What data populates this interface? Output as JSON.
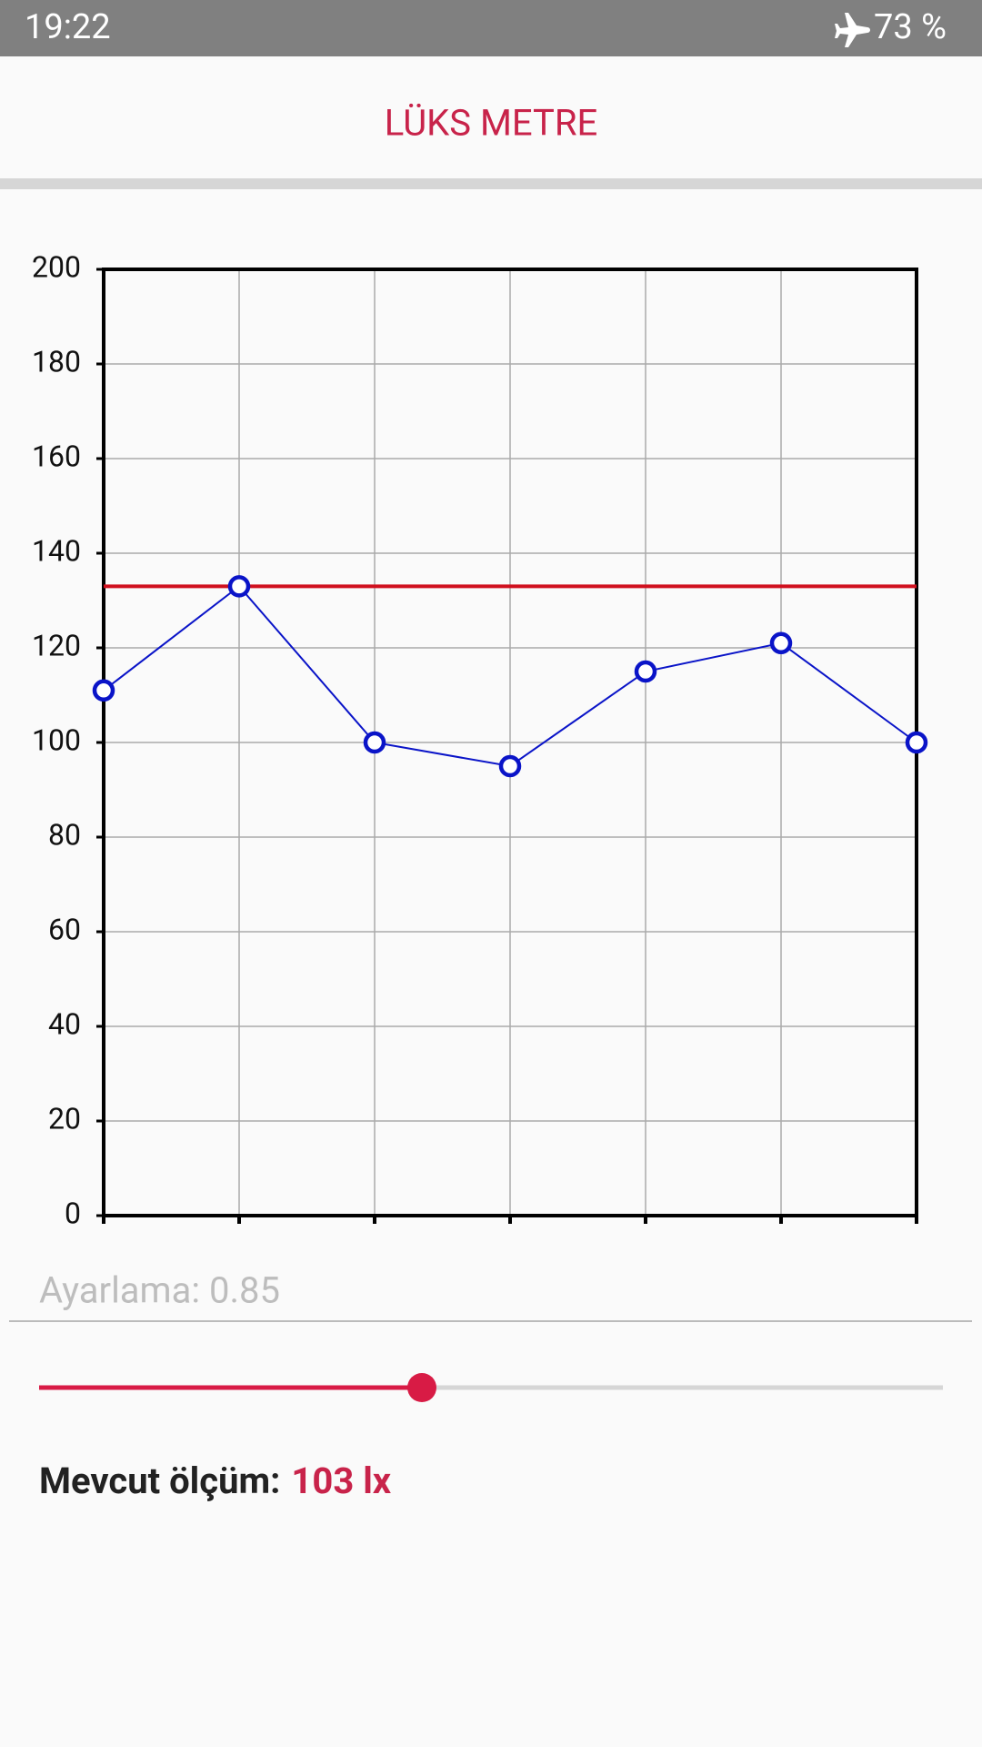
{
  "status_bar": {
    "time": "19:22",
    "battery": "73 %"
  },
  "header": {
    "title": "LÜKS METRE"
  },
  "chart_data": {
    "type": "line",
    "categories": [
      null,
      null,
      null,
      null,
      null,
      null,
      null
    ],
    "series": [
      {
        "color": "#0a14c8",
        "values": [
          111,
          133,
          100,
          95,
          115,
          121,
          100
        ]
      }
    ],
    "threshold": {
      "value": 133,
      "color": "#d0101e"
    },
    "ylim": [
      0,
      200
    ],
    "yticks": [
      0,
      20,
      40,
      60,
      80,
      100,
      120,
      140,
      160,
      180,
      200
    ],
    "grid": true
  },
  "adjustment": {
    "hint": "Ayarlama: 0.85"
  },
  "measurement": {
    "label": "Mevcut ölçüm:",
    "value": "103 lx"
  }
}
